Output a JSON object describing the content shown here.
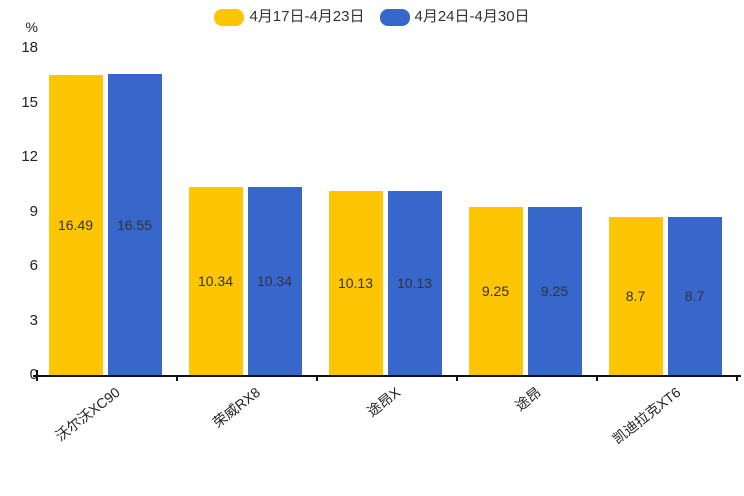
{
  "chart_data": {
    "type": "bar",
    "title": "",
    "ylabel": "%",
    "categories": [
      "沃尔沃XC90",
      "荣威RX8",
      "途昂X",
      "途昂",
      "凯迪拉克XT6"
    ],
    "series": [
      {
        "name": "4月17日-4月23日",
        "color": "#FDC504",
        "values": [
          16.49,
          10.34,
          10.13,
          9.25,
          8.7
        ]
      },
      {
        "name": "4月24日-4月30日",
        "color": "#3767CB",
        "values": [
          16.55,
          10.34,
          10.13,
          9.25,
          8.7
        ]
      }
    ],
    "ylim": [
      0,
      18
    ],
    "yticks": [
      0,
      3,
      6,
      9,
      12,
      15,
      18
    ],
    "grid": false,
    "legend_position": "top-center",
    "value_label_position": "inside-center",
    "xlabel_rotation_deg": -38,
    "axis_color": "#111111",
    "background_color": "#ffffff"
  }
}
